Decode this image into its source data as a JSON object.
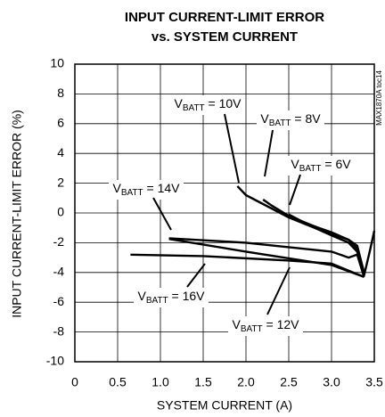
{
  "chart_data": {
    "type": "line",
    "title": [
      "INPUT CURRENT-LIMIT ERROR",
      "vs. SYSTEM CURRENT"
    ],
    "x_label": "SYSTEM CURRENT (A)",
    "y_label": "INPUT CURRENT-LIMIT ERROR (%)",
    "side_note": "MAX1870A toc14",
    "xlim": [
      0,
      3.5
    ],
    "ylim": [
      -10,
      10
    ],
    "xticks": [
      0,
      0.5,
      {
        "value": 1,
        "label": "1.0"
      },
      1.5,
      {
        "value": 2,
        "label": "2.0"
      },
      2.5,
      {
        "value": 3,
        "label": "3.0"
      },
      3.5
    ],
    "yticks": [
      -10,
      -8,
      -6,
      -4,
      -2,
      0,
      2,
      4,
      6,
      8,
      10
    ],
    "grid": true,
    "series": [
      {
        "name": "VBATT = 10V",
        "color": "#000000",
        "x": [
          1.9,
          2.0,
          2.2,
          2.5,
          2.8,
          3.0,
          3.2,
          3.3,
          3.38,
          3.45,
          3.5
        ],
        "values": [
          1.8,
          1.2,
          0.6,
          -0.3,
          -1.0,
          -1.5,
          -2.0,
          -2.6,
          -4.2,
          -2.5,
          -1.2
        ]
      },
      {
        "name": "VBATT = 8V",
        "color": "#000000",
        "x": [
          2.2,
          2.3,
          2.5,
          2.8,
          3.0,
          3.2,
          3.3,
          3.38
        ],
        "values": [
          0.9,
          0.5,
          -0.2,
          -0.9,
          -1.4,
          -1.8,
          -2.4,
          -4.2
        ]
      },
      {
        "name": "VBATT = 6V",
        "color": "#000000",
        "x": [
          2.5,
          2.7,
          3.0,
          3.2,
          3.3,
          3.38
        ],
        "values": [
          -0.1,
          -0.7,
          -1.3,
          -1.8,
          -2.2,
          -4.0
        ]
      },
      {
        "name": "VBATT = 14V",
        "color": "#000000",
        "x": [
          1.1,
          2.0,
          3.0,
          3.2,
          3.3,
          3.38
        ],
        "values": [
          -1.7,
          -2.0,
          -2.6,
          -3.0,
          -2.8,
          -4.3
        ]
      },
      {
        "name": "VBATT = 12V",
        "color": "#000000",
        "x": [
          1.1,
          2.0,
          3.0,
          3.38
        ],
        "values": [
          -1.75,
          -2.6,
          -3.5,
          -4.3
        ]
      },
      {
        "name": "VBATT = 16V",
        "color": "#000000",
        "x": [
          0.65,
          1.5,
          2.5,
          3.0,
          3.38
        ],
        "values": [
          -2.8,
          -2.9,
          -3.2,
          -3.4,
          -4.3
        ]
      }
    ],
    "annotations": [
      {
        "prefix": "V",
        "sub": "BATT",
        "suffix": " = 10V"
      },
      {
        "prefix": "V",
        "sub": "BATT",
        "suffix": " = 8V"
      },
      {
        "prefix": "V",
        "sub": "BATT",
        "suffix": " = 6V"
      },
      {
        "prefix": "V",
        "sub": "BATT",
        "suffix": " = 14V"
      },
      {
        "prefix": "V",
        "sub": "BATT",
        "suffix": " = 16V"
      },
      {
        "prefix": "V",
        "sub": "BATT",
        "suffix": " = 12V"
      }
    ]
  }
}
